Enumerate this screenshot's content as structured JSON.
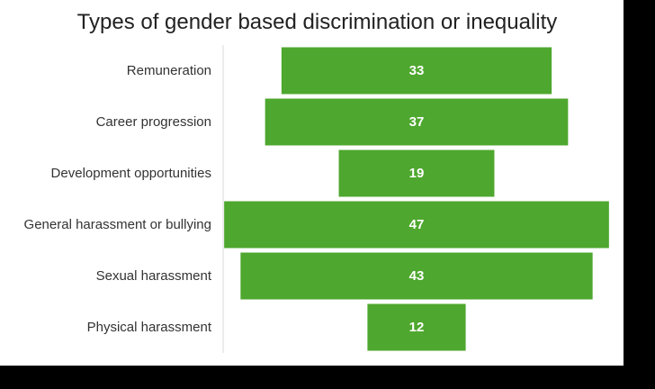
{
  "chart_data": {
    "type": "bar",
    "orientation": "horizontal-centered",
    "title": "Types of gender based discrimination or inequality",
    "categories": [
      "Remuneration",
      "Career progression",
      "Development opportunities",
      "General harassment or bullying",
      "Sexual harassment",
      "Physical harassment"
    ],
    "values": [
      33,
      37,
      19,
      47,
      43,
      12
    ],
    "bar_color": "#4ea72e",
    "data_label_color": "#ffffff",
    "grid": false,
    "legend": "none"
  }
}
